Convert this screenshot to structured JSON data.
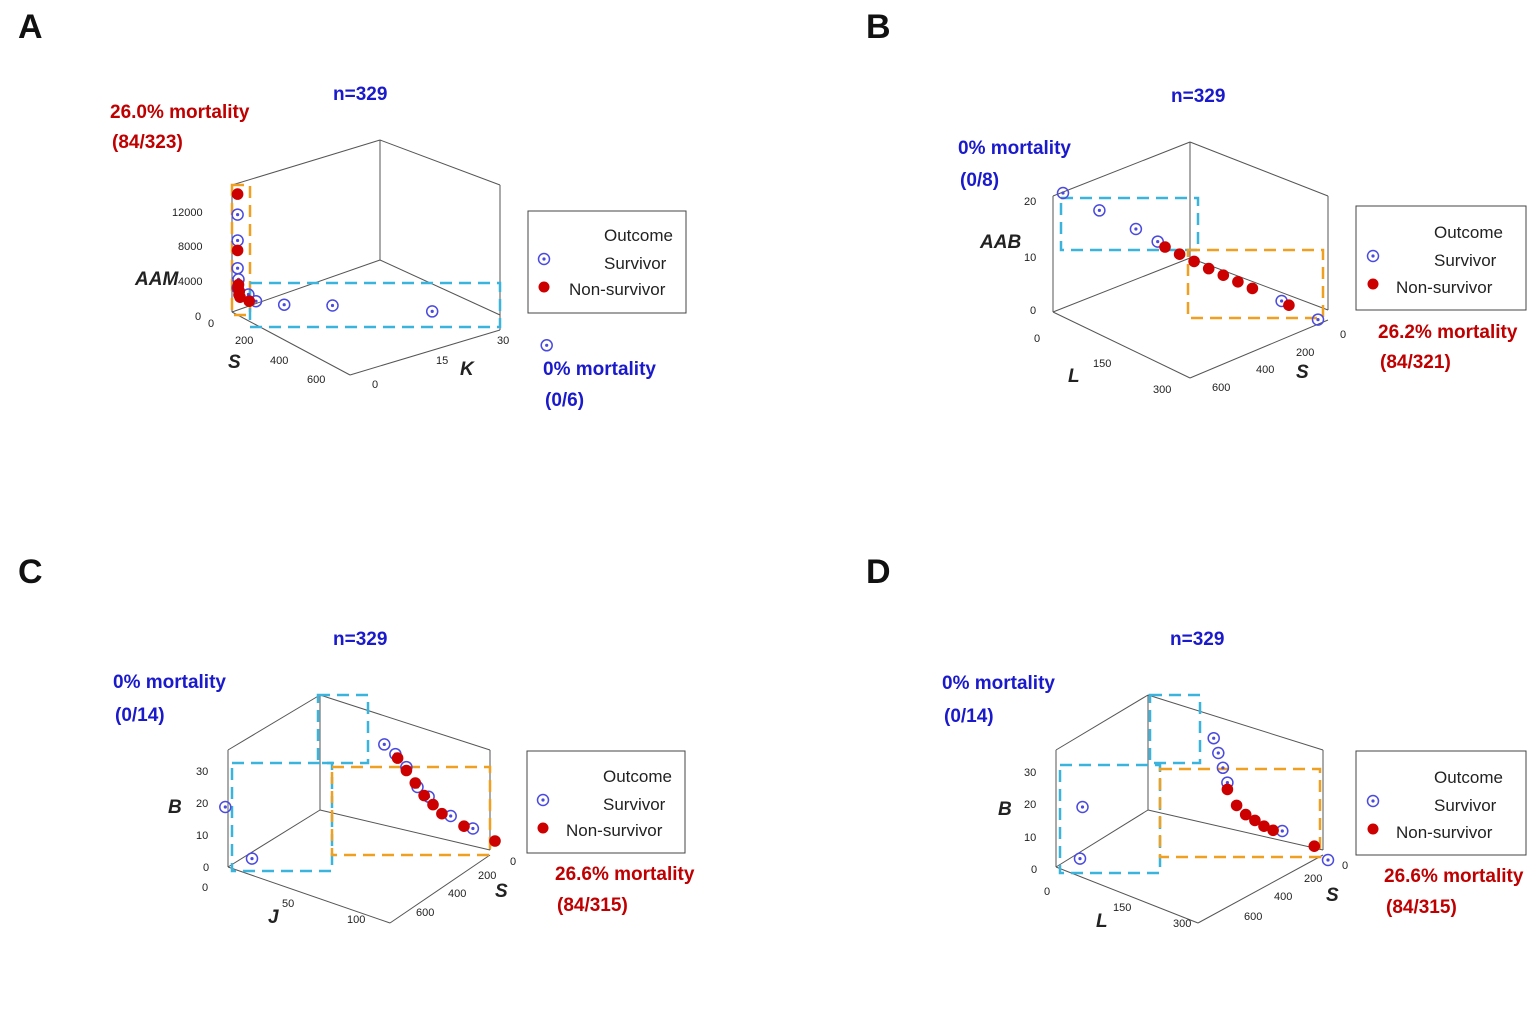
{
  "chart_data": [
    {
      "type": "scatter",
      "panel_label": "A",
      "title": "n=329",
      "axes": {
        "x": "S",
        "y": "K",
        "z": "AAM"
      },
      "x_ticks": [
        "0",
        "200",
        "400",
        "600"
      ],
      "y_ticks": [
        "0",
        "15",
        "30"
      ],
      "z_ticks": [
        "0",
        "4000",
        "8000",
        "12000"
      ],
      "legend": {
        "title": "Outcome",
        "items": [
          "Survivor",
          "Non-survivor"
        ]
      },
      "annotations": [
        {
          "text": "26.0% mortality",
          "sub": "(84/323)",
          "color": "#c00000"
        },
        {
          "text": "0% mortality",
          "sub": "(0/6)",
          "color": "#1a1acc"
        }
      ],
      "series": [
        {
          "name": "Survivor",
          "points": [
            [
              10,
              0,
              11000
            ],
            [
              10,
              0,
              8100
            ],
            [
              10,
              0,
              5000
            ],
            [
              10,
              0,
              2800
            ],
            [
              20,
              2,
              1400
            ],
            [
              40,
              5,
              1200
            ],
            [
              80,
              10,
              1500
            ],
            [
              180,
              20,
              1800
            ],
            [
              420,
              29,
              300
            ],
            [
              15,
              0,
              3800
            ],
            [
              25,
              1,
              2200
            ]
          ]
        },
        {
          "name": "Non-survivor",
          "points": [
            [
              10,
              0,
              13300
            ],
            [
              10,
              0,
              7000
            ],
            [
              15,
              0,
              3200
            ],
            [
              20,
              0,
              2500
            ],
            [
              25,
              0,
              1900
            ],
            [
              30,
              1,
              1500
            ],
            [
              12,
              0,
              2800
            ],
            [
              18,
              0,
              2100
            ]
          ]
        }
      ]
    },
    {
      "type": "scatter",
      "panel_label": "B",
      "title": "n=329",
      "axes": {
        "x": "L",
        "y": "S",
        "z": "AAB"
      },
      "x_ticks": [
        "0",
        "150",
        "300"
      ],
      "y_ticks": [
        "600",
        "400",
        "200",
        "0"
      ],
      "z_ticks": [
        "0",
        "10",
        "20"
      ],
      "legend": {
        "title": "Outcome",
        "items": [
          "Survivor",
          "Non-survivor"
        ]
      },
      "annotations": [
        {
          "text": "0% mortality",
          "sub": "(0/8)",
          "color": "#1a1acc"
        },
        {
          "text": "26.2% mortality",
          "sub": "(84/321)",
          "color": "#c00000"
        }
      ],
      "series": [
        {
          "name": "Survivor",
          "points": [
            [
              0,
              0,
              20
            ],
            [
              0,
              100,
              18
            ],
            [
              0,
              200,
              15
            ],
            [
              0,
              260,
              12
            ],
            [
              0,
              600,
              5
            ],
            [
              0,
              700,
              2
            ]
          ]
        },
        {
          "name": "Non-survivor",
          "points": [
            [
              0,
              280,
              10
            ],
            [
              0,
              320,
              9
            ],
            [
              0,
              360,
              8
            ],
            [
              0,
              400,
              7
            ],
            [
              0,
              440,
              6.5
            ],
            [
              0,
              480,
              6
            ],
            [
              0,
              520,
              5.5
            ],
            [
              0,
              620,
              4
            ]
          ]
        }
      ]
    },
    {
      "type": "scatter",
      "panel_label": "C",
      "title": "n=329",
      "axes": {
        "x": "J",
        "y": "S",
        "z": "B"
      },
      "x_ticks": [
        "0",
        "50",
        "100"
      ],
      "y_ticks": [
        "600",
        "400",
        "200",
        "0"
      ],
      "z_ticks": [
        "0",
        "10",
        "20",
        "30"
      ],
      "legend": {
        "title": "Outcome",
        "items": [
          "Survivor",
          "Non-survivor"
        ]
      },
      "annotations": [
        {
          "text": "0% mortality",
          "sub": "(0/14)",
          "color": "#1a1acc"
        },
        {
          "text": "26.6% mortality",
          "sub": "(84/315)",
          "color": "#c00000"
        }
      ],
      "series": [
        {
          "name": "Survivor",
          "points": [
            [
              0,
              0,
              2
            ],
            [
              40,
              0,
              15
            ],
            [
              0,
              200,
              30
            ],
            [
              0,
              250,
              28
            ],
            [
              0,
              300,
              25
            ],
            [
              0,
              350,
              20
            ],
            [
              0,
              400,
              18
            ],
            [
              0,
              500,
              14
            ],
            [
              0,
              600,
              12
            ]
          ]
        },
        {
          "name": "Non-survivor",
          "points": [
            [
              0,
              260,
              27
            ],
            [
              0,
              300,
              24
            ],
            [
              0,
              340,
              21
            ],
            [
              0,
              380,
              18
            ],
            [
              0,
              420,
              16
            ],
            [
              0,
              460,
              14
            ],
            [
              0,
              560,
              12
            ],
            [
              0,
              700,
              10
            ]
          ]
        }
      ]
    },
    {
      "type": "scatter",
      "panel_label": "D",
      "title": "n=329",
      "axes": {
        "x": "L",
        "y": "S",
        "z": "B"
      },
      "x_ticks": [
        "0",
        "150",
        "300"
      ],
      "y_ticks": [
        "600",
        "400",
        "200",
        "0"
      ],
      "z_ticks": [
        "0",
        "10",
        "20",
        "30"
      ],
      "legend": {
        "title": "Outcome",
        "items": [
          "Survivor",
          "Non-survivor"
        ]
      },
      "annotations": [
        {
          "text": "0% mortality",
          "sub": "(0/14)",
          "color": "#1a1acc"
        },
        {
          "text": "26.6% mortality",
          "sub": "(84/315)",
          "color": "#c00000"
        }
      ],
      "series": [
        {
          "name": "Survivor",
          "points": [
            [
              0,
              0,
              2
            ],
            [
              60,
              0,
              15
            ],
            [
              0,
              200,
              32
            ],
            [
              0,
              220,
              28
            ],
            [
              0,
              240,
              24
            ],
            [
              0,
              260,
              20
            ],
            [
              0,
              500,
              10
            ],
            [
              0,
              700,
              5
            ]
          ]
        },
        {
          "name": "Non-survivor",
          "points": [
            [
              0,
              260,
              18
            ],
            [
              0,
              300,
              14
            ],
            [
              0,
              340,
              12
            ],
            [
              0,
              380,
              11
            ],
            [
              0,
              420,
              10
            ],
            [
              0,
              460,
              9.5
            ],
            [
              0,
              640,
              8
            ]
          ]
        }
      ]
    }
  ]
}
